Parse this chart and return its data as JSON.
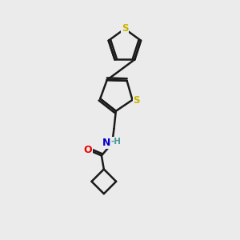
{
  "bg_color": "#ebebeb",
  "bond_color": "#1a1a1a",
  "S_color": "#c8b400",
  "N_color": "#0000cc",
  "O_color": "#ee0000",
  "H_color": "#4a9a9a",
  "line_width": 1.8,
  "figsize": [
    3.0,
    3.0
  ],
  "dpi": 100,
  "xlim": [
    0,
    10
  ],
  "ylim": [
    0,
    10
  ]
}
